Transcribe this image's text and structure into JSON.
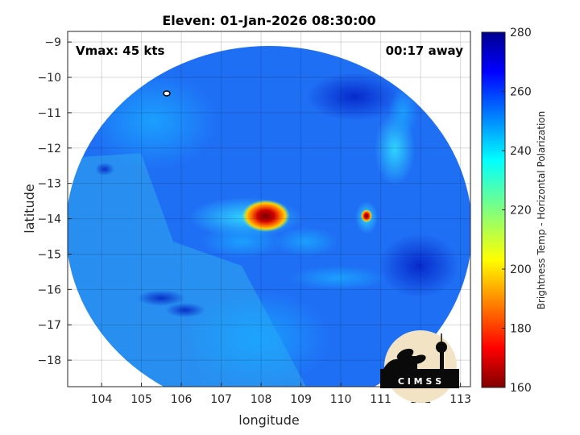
{
  "chart_data": {
    "type": "heatmap",
    "title": "Eleven: 01-Jan-2026 08:30:00",
    "xlabel": "longitude",
    "ylabel": "latitude",
    "xlim": [
      103.15,
      113.25
    ],
    "ylim": [
      -18.75,
      -8.7
    ],
    "xticks": [
      104,
      105,
      106,
      107,
      108,
      109,
      110,
      111,
      112,
      113
    ],
    "yticks": [
      -9,
      -10,
      -11,
      -12,
      -13,
      -14,
      -15,
      -16,
      -17,
      -18
    ],
    "grid": true,
    "annotations": {
      "vmax": "Vmax: 45 kts",
      "time_away": "00:17 away"
    },
    "storm_center": {
      "lon": 108.4,
      "lat": -13.9
    },
    "colorbar": {
      "label": "Brightness Temp - Horizontal Polarization",
      "min": 160,
      "max": 280,
      "ticks": [
        280,
        260,
        240,
        220,
        200,
        180,
        160
      ],
      "colormap": "jet"
    },
    "logo_text": "C I M S S"
  }
}
